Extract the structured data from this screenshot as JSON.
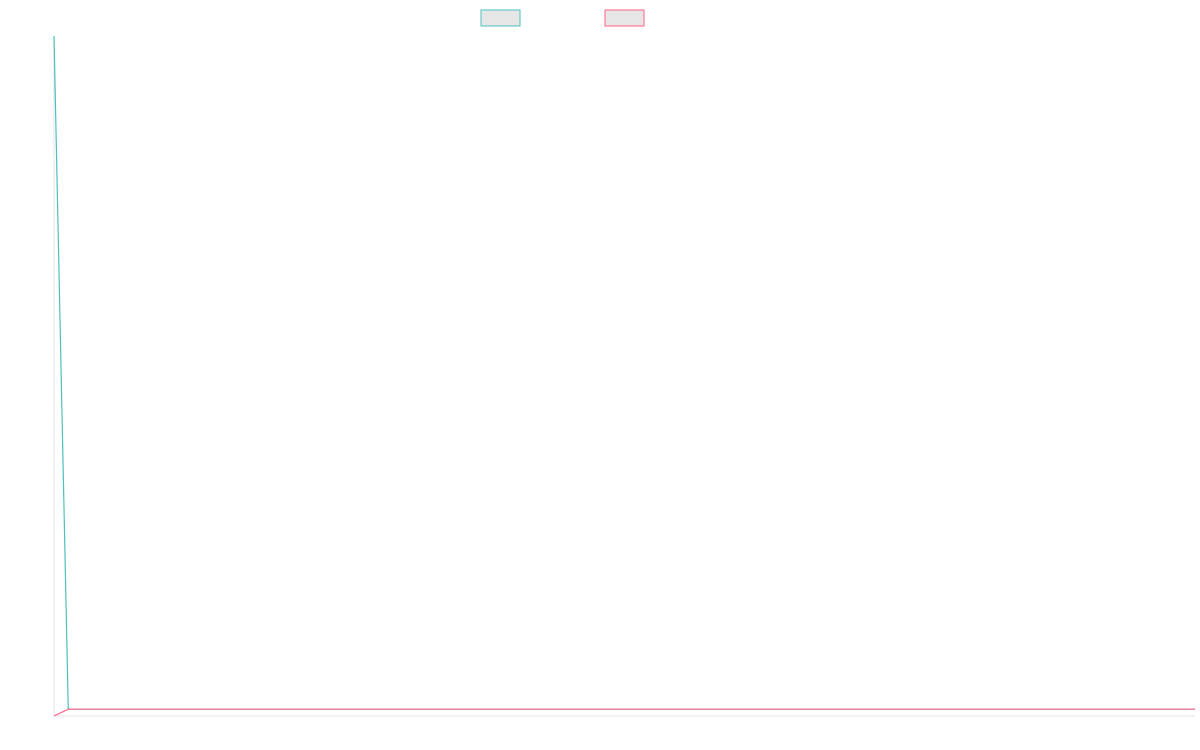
{
  "chart_data": {
    "type": "line",
    "title": "",
    "xlabel": "",
    "ylabel": "",
    "grid": false,
    "legend_position": "top-center",
    "x": [
      0,
      1,
      2,
      3,
      4,
      5,
      6,
      7,
      8,
      9,
      10,
      11,
      12,
      13,
      14,
      15,
      16,
      17,
      18,
      19,
      20,
      21,
      22,
      23,
      24,
      25,
      26,
      27,
      28,
      29,
      30,
      31,
      32,
      33,
      34,
      35,
      36,
      37,
      38,
      39,
      40,
      41,
      42,
      43,
      44,
      45,
      46,
      47,
      48,
      49,
      50,
      51,
      52,
      53,
      54,
      55,
      56,
      57,
      58,
      59,
      60,
      61,
      62,
      63,
      64,
      65,
      66,
      67,
      68,
      69,
      70,
      71,
      72,
      73,
      74,
      75,
      76,
      77,
      78,
      79,
      80
    ],
    "xlim": [
      0,
      80
    ],
    "ylim": [
      0,
      100
    ],
    "series": [
      {
        "color": "#4bc0c0",
        "legend_fill": "#e6e6e6",
        "values": [
          100,
          1,
          1,
          1,
          1,
          1,
          1,
          1,
          1,
          1,
          1,
          1,
          1,
          1,
          1,
          1,
          1,
          1,
          1,
          1,
          1,
          1,
          1,
          1,
          1,
          1,
          1,
          1,
          1,
          1,
          1,
          1,
          1,
          1,
          1,
          1,
          1,
          1,
          1,
          1,
          1,
          1,
          1,
          1,
          1,
          1,
          1,
          1,
          1,
          1,
          1,
          1,
          1,
          1,
          1,
          1,
          1,
          1,
          1,
          1,
          1,
          1,
          1,
          1,
          1,
          1,
          1,
          1,
          1,
          1,
          1,
          1,
          1,
          1,
          1,
          1,
          1,
          1,
          1,
          1,
          1
        ]
      },
      {
        "color": "#ff6384",
        "legend_fill": "#e6e6e6",
        "values": [
          0,
          1,
          1,
          1,
          1,
          1,
          1,
          1,
          1,
          1,
          1,
          1,
          1,
          1,
          1,
          1,
          1,
          1,
          1,
          1,
          1,
          1,
          1,
          1,
          1,
          1,
          1,
          1,
          1,
          1,
          1,
          1,
          1,
          1,
          1,
          1,
          1,
          1,
          1,
          1,
          1,
          1,
          1,
          1,
          1,
          1,
          1,
          1,
          1,
          1,
          1,
          1,
          1,
          1,
          1,
          1,
          1,
          1,
          1,
          1,
          1,
          1,
          1,
          1,
          1,
          1,
          1,
          1,
          1,
          1,
          1,
          1,
          1,
          1,
          1,
          1,
          1,
          1,
          1,
          1,
          1
        ]
      }
    ]
  }
}
